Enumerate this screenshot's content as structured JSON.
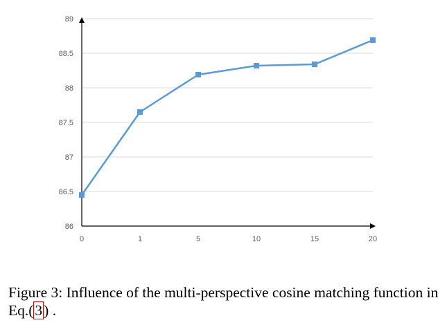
{
  "chart_data": {
    "type": "line",
    "categories": [
      "0",
      "1",
      "5",
      "10",
      "15",
      "20"
    ],
    "series": [
      {
        "values": [
          86.45,
          87.65,
          88.19,
          88.32,
          88.34,
          88.69
        ]
      }
    ],
    "yticks": [
      "86",
      "86.5",
      "87",
      "87.5",
      "88",
      "88.5",
      "89"
    ],
    "ylim": [
      86,
      89
    ],
    "grid": true,
    "line_color": "#5b9bd5",
    "axis_color": "#000000",
    "grid_color": "#d9d9d9"
  },
  "caption": {
    "prefix": "Figure 3: Influence of the multi-perspective cosine matching function in Eq.(",
    "ref": "3",
    "suffix": ") ."
  }
}
